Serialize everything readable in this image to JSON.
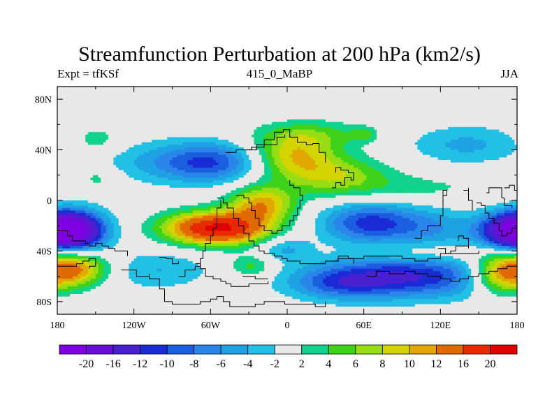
{
  "header": {
    "title": "Streamfunction Perturbation at 200 hPa (km2/s)",
    "left_label": "Expt = tfKSf",
    "center_label": "415_0_MaBP",
    "right_label": "JJA"
  },
  "chart_data": {
    "type": "heatmap",
    "title": "Streamfunction Perturbation at 200 hPa (km2/s)",
    "xlabel": "",
    "ylabel": "",
    "xlim": [
      -180,
      180
    ],
    "ylim": [
      -90,
      90
    ],
    "x_ticks": [
      {
        "value": -180,
        "label": "180"
      },
      {
        "value": -120,
        "label": "120W"
      },
      {
        "value": -60,
        "label": "60W"
      },
      {
        "value": 0,
        "label": "0"
      },
      {
        "value": 60,
        "label": "60E"
      },
      {
        "value": 120,
        "label": "120E"
      },
      {
        "value": 180,
        "label": "180"
      }
    ],
    "y_ticks": [
      {
        "value": 80,
        "label": "80N"
      },
      {
        "value": 40,
        "label": "40N"
      },
      {
        "value": 0,
        "label": "0"
      },
      {
        "value": -40,
        "label": "40S"
      },
      {
        "value": -80,
        "label": "80S"
      }
    ],
    "levels": [
      -20,
      -16,
      -12,
      -10,
      -8,
      -6,
      -4,
      -2,
      2,
      4,
      6,
      8,
      10,
      12,
      16,
      20
    ],
    "level_labels": [
      "-20",
      "-16",
      "-12",
      "-10",
      "-8",
      "-6",
      "-4",
      "-2",
      "2",
      "4",
      "6",
      "8",
      "10",
      "12",
      "16",
      "20"
    ],
    "colors": [
      "#7f00e0",
      "#6a0fd8",
      "#4820d0",
      "#1a2bd6",
      "#1c5ee0",
      "#2a86e8",
      "#1fa2e4",
      "#22c0e4",
      "#e8e8e8",
      "#10d28a",
      "#3fd21a",
      "#98dc14",
      "#d4d400",
      "#e0a800",
      "#e06a00",
      "#e82a00",
      "#e00000"
    ],
    "field_centers": [
      {
        "lon": -168,
        "lat": -24,
        "amp": -21,
        "sx": 18,
        "sy": 11
      },
      {
        "lon": -165,
        "lat": -54,
        "amp": 12,
        "sx": 18,
        "sy": 10
      },
      {
        "lon": -150,
        "lat": 48,
        "amp": 3.5,
        "sx": 14,
        "sy": 8
      },
      {
        "lon": -148,
        "lat": 18,
        "amp": 3,
        "sx": 12,
        "sy": 6
      },
      {
        "lon": -95,
        "lat": 30,
        "amp": -4.5,
        "sx": 35,
        "sy": 12
      },
      {
        "lon": -58,
        "lat": 30,
        "amp": -8,
        "sx": 26,
        "sy": 11
      },
      {
        "lon": -55,
        "lat": -22,
        "amp": 21,
        "sx": 28,
        "sy": 9
      },
      {
        "lon": -20,
        "lat": -3,
        "amp": 11,
        "sx": 18,
        "sy": 10
      },
      {
        "lon": -100,
        "lat": -55,
        "amp": -4,
        "sx": 28,
        "sy": 11
      },
      {
        "lon": -28,
        "lat": -52,
        "amp": 5,
        "sx": 12,
        "sy": 6
      },
      {
        "lon": -2,
        "lat": -38,
        "amp": -4.5,
        "sx": 14,
        "sy": 7
      },
      {
        "lon": 5,
        "lat": 36,
        "amp": 8.5,
        "sx": 22,
        "sy": 11
      },
      {
        "lon": 35,
        "lat": 20,
        "amp": 7.5,
        "sx": 30,
        "sy": 11
      },
      {
        "lon": 18,
        "lat": 52,
        "amp": 5,
        "sx": 30,
        "sy": 8
      },
      {
        "lon": 60,
        "lat": 52,
        "amp": 4,
        "sx": 7,
        "sy": 4
      },
      {
        "lon": 65,
        "lat": -18,
        "amp": -11,
        "sx": 26,
        "sy": 11
      },
      {
        "lon": 115,
        "lat": -22,
        "amp": -5,
        "sx": 22,
        "sy": 11
      },
      {
        "lon": 140,
        "lat": 44,
        "amp": -4.5,
        "sx": 32,
        "sy": 11
      },
      {
        "lon": 100,
        "lat": 10,
        "amp": 2.5,
        "sx": 45,
        "sy": 8
      },
      {
        "lon": 95,
        "lat": -60,
        "amp": -12,
        "sx": 50,
        "sy": 12
      },
      {
        "lon": 40,
        "lat": -66,
        "amp": -6,
        "sx": 28,
        "sy": 9
      },
      {
        "lon": 172,
        "lat": -24,
        "amp": -12,
        "sx": 18,
        "sy": 10
      },
      {
        "lon": 168,
        "lat": -58,
        "amp": 13,
        "sx": 17,
        "sy": 11
      },
      {
        "lon": 110,
        "lat": -42,
        "amp": 3,
        "sx": 40,
        "sy": 6
      }
    ],
    "coastlines": [
      [
        [
          -180,
          -24
        ],
        [
          -175,
          -24
        ],
        [
          -172,
          -28
        ],
        [
          -168,
          -32
        ],
        [
          -162,
          -32
        ],
        [
          -158,
          -34
        ],
        [
          -155,
          -36
        ],
        [
          -150,
          -34
        ],
        [
          -145,
          -36
        ],
        [
          -140,
          -38
        ],
        [
          -135,
          -40
        ],
        [
          -130,
          -40
        ],
        [
          -125,
          -44
        ]
      ],
      [
        [
          -180,
          -52
        ],
        [
          -172,
          -52
        ],
        [
          -165,
          -50
        ],
        [
          -160,
          -48
        ],
        [
          -155,
          -46
        ],
        [
          -150,
          -46
        ],
        [
          -150,
          -52
        ],
        [
          -155,
          -54
        ]
      ],
      [
        [
          -130,
          -55
        ],
        [
          -118,
          -55
        ],
        [
          -118,
          -60
        ],
        [
          -108,
          -58
        ],
        [
          -108,
          -62
        ],
        [
          -100,
          -70
        ],
        [
          -96,
          -80
        ],
        [
          -90,
          -82
        ],
        [
          -75,
          -82
        ],
        [
          -68,
          -80
        ],
        [
          -60,
          -78
        ],
        [
          -55,
          -76
        ],
        [
          -50,
          -80
        ],
        [
          -45,
          -84
        ],
        [
          -35,
          -84
        ],
        [
          -25,
          -82
        ],
        [
          -18,
          -80
        ],
        [
          -10,
          -80
        ],
        [
          -2,
          -82
        ],
        [
          10,
          -82
        ],
        [
          22,
          -84
        ],
        [
          30,
          -80
        ]
      ],
      [
        [
          -72,
          -50
        ],
        [
          -68,
          -54
        ],
        [
          -64,
          -60
        ],
        [
          -58,
          -62
        ],
        [
          -52,
          -64
        ],
        [
          -48,
          -66
        ],
        [
          -44,
          -68
        ],
        [
          -30,
          -66
        ],
        [
          -15,
          -64
        ]
      ],
      [
        [
          -35,
          -60
        ],
        [
          -25,
          -62
        ],
        [
          -15,
          -62
        ]
      ],
      [
        [
          -48,
          38
        ],
        [
          -40,
          40
        ],
        [
          -28,
          42
        ],
        [
          -18,
          48
        ],
        [
          -10,
          54
        ],
        [
          -3,
          56
        ],
        [
          2,
          50
        ],
        [
          8,
          46
        ],
        [
          15,
          44
        ],
        [
          20,
          45
        ],
        [
          25,
          38
        ],
        [
          30,
          30
        ]
      ],
      [
        [
          -30,
          40
        ],
        [
          -24,
          44
        ],
        [
          -12,
          44
        ],
        [
          -8,
          50
        ],
        [
          -2,
          52
        ]
      ],
      [
        [
          -40,
          4
        ],
        [
          -34,
          2
        ],
        [
          -30,
          -2
        ],
        [
          -28,
          -8
        ],
        [
          -25,
          -14
        ],
        [
          -22,
          -20
        ],
        [
          -18,
          -24
        ],
        [
          -12,
          -26
        ],
        [
          -8,
          -24
        ],
        [
          -4,
          -20
        ],
        [
          2,
          -16
        ],
        [
          5,
          -12
        ],
        [
          8,
          -6
        ],
        [
          10,
          0
        ],
        [
          12,
          4
        ],
        [
          10,
          10
        ],
        [
          5,
          12
        ],
        [
          2,
          16
        ]
      ],
      [
        [
          -55,
          2
        ],
        [
          -50,
          -2
        ],
        [
          -47,
          -6
        ],
        [
          -42,
          -14
        ],
        [
          -38,
          -20
        ],
        [
          -34,
          -26
        ],
        [
          -30,
          -32
        ],
        [
          -26,
          -36
        ],
        [
          -22,
          -40
        ],
        [
          -18,
          -42
        ],
        [
          -10,
          -44
        ],
        [
          -4,
          -46
        ],
        [
          0,
          -48
        ],
        [
          10,
          -50
        ],
        [
          20,
          -50
        ],
        [
          30,
          -48
        ],
        [
          40,
          -46
        ],
        [
          50,
          -46
        ],
        [
          60,
          -44
        ],
        [
          75,
          -44
        ],
        [
          90,
          -46
        ],
        [
          100,
          -48
        ],
        [
          110,
          -46
        ],
        [
          120,
          -42
        ],
        [
          135,
          -42
        ],
        [
          150,
          -40
        ]
      ],
      [
        [
          -85,
          -60
        ],
        [
          -80,
          -55
        ],
        [
          -72,
          -52
        ],
        [
          -68,
          -46
        ],
        [
          -66,
          -40
        ],
        [
          -64,
          -34
        ],
        [
          -60,
          -28
        ],
        [
          -58,
          -22
        ],
        [
          -55,
          -14
        ],
        [
          -55,
          -6
        ],
        [
          -52,
          0
        ]
      ],
      [
        [
          -100,
          -45
        ],
        [
          -95,
          -46
        ],
        [
          -90,
          -50
        ],
        [
          -85,
          -48
        ]
      ],
      [
        [
          35,
          10
        ],
        [
          38,
          14
        ],
        [
          42,
          12
        ],
        [
          45,
          18
        ],
        [
          50,
          16
        ],
        [
          52,
          22
        ],
        [
          48,
          24
        ],
        [
          42,
          26
        ],
        [
          38,
          22
        ]
      ],
      [
        [
          35,
          -48
        ],
        [
          40,
          -44
        ],
        [
          48,
          -46
        ],
        [
          52,
          -50
        ]
      ],
      [
        [
          62,
          -60
        ],
        [
          70,
          -56
        ],
        [
          80,
          -58
        ],
        [
          92,
          -56
        ],
        [
          100,
          -58
        ],
        [
          110,
          -60
        ],
        [
          120,
          -62
        ],
        [
          128,
          -64
        ],
        [
          135,
          -62
        ],
        [
          142,
          -60
        ],
        [
          150,
          -58
        ],
        [
          158,
          -56
        ],
        [
          165,
          -54
        ],
        [
          172,
          -52
        ],
        [
          180,
          -50
        ]
      ],
      [
        [
          100,
          -30
        ],
        [
          105,
          -24
        ],
        [
          110,
          -20
        ],
        [
          118,
          -20
        ],
        [
          120,
          -12
        ],
        [
          122,
          -4
        ],
        [
          122,
          4
        ],
        [
          125,
          8
        ],
        [
          122,
          -2
        ]
      ],
      [
        [
          118,
          -38
        ],
        [
          124,
          -42
        ],
        [
          128,
          -40
        ],
        [
          132,
          -36
        ],
        [
          138,
          -36
        ],
        [
          142,
          -38
        ],
        [
          142,
          -30
        ],
        [
          138,
          -28
        ],
        [
          134,
          -32
        ]
      ],
      [
        [
          138,
          8
        ],
        [
          142,
          10
        ],
        [
          142,
          0
        ],
        [
          145,
          -8
        ]
      ],
      [
        [
          148,
          -2
        ],
        [
          152,
          -4
        ],
        [
          155,
          -10
        ],
        [
          158,
          -14
        ],
        [
          162,
          -18
        ],
        [
          166,
          -24
        ],
        [
          168,
          -28
        ],
        [
          172,
          -26
        ],
        [
          176,
          -22
        ],
        [
          180,
          -20
        ]
      ],
      [
        [
          156,
          6
        ],
        [
          158,
          10
        ],
        [
          165,
          10
        ],
        [
          168,
          2
        ],
        [
          170,
          -4
        ],
        [
          176,
          -6
        ]
      ],
      [
        [
          170,
          10
        ],
        [
          174,
          12
        ],
        [
          178,
          8
        ],
        [
          180,
          6
        ]
      ]
    ]
  }
}
